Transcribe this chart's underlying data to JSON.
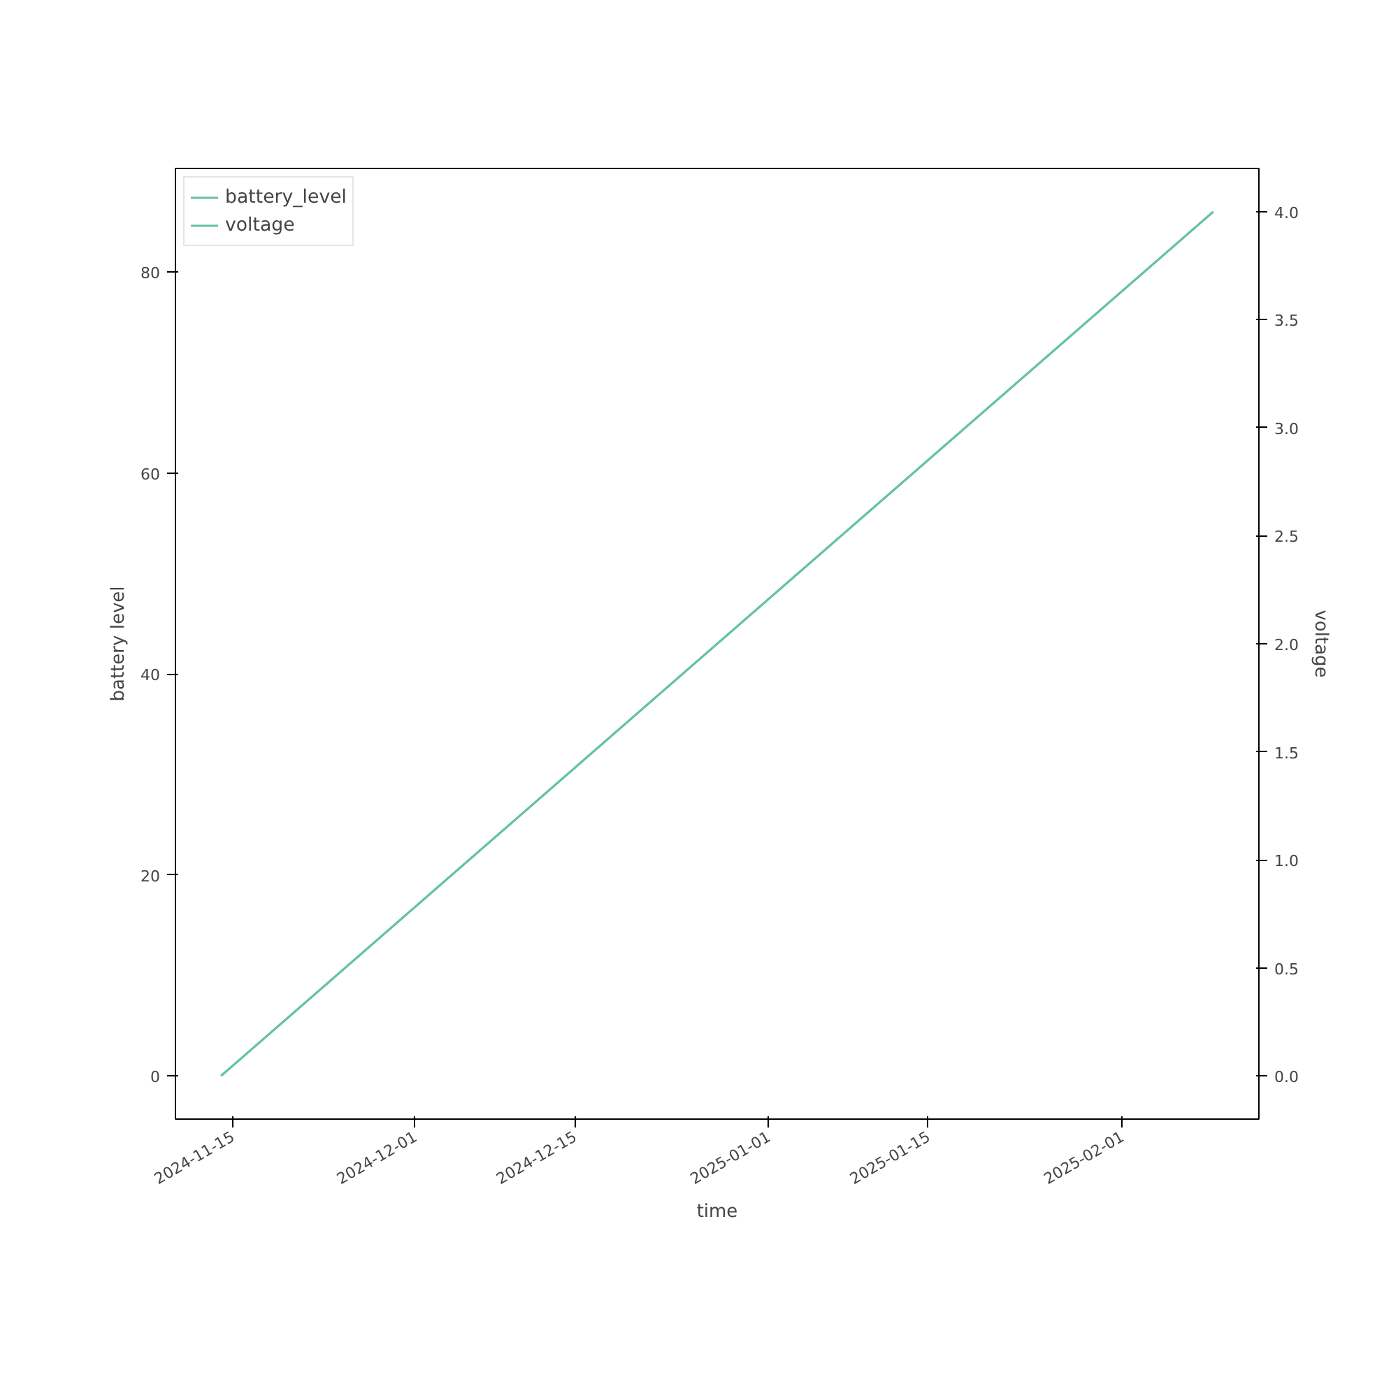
{
  "chart_data": {
    "type": "line",
    "xlabel": "time",
    "ylabel": "battery level",
    "y2label": "voltage",
    "x": [
      "2024-11-14",
      "2025-02-09"
    ],
    "series": [
      {
        "name": "battery_level",
        "color": "#66c2a5",
        "values": [
          0,
          86
        ]
      },
      {
        "name": "voltage",
        "color": "#66c2a5",
        "values": [
          0,
          4.0
        ],
        "axis": "y2"
      }
    ],
    "xlim": [
      "2024-11-10",
      "2025-02-13"
    ],
    "xticks": [
      "2024-11-15",
      "2024-12-01",
      "2024-12-15",
      "2025-01-01",
      "2025-01-15",
      "2025-02-01"
    ],
    "ylim": [
      -4.3,
      90.3
    ],
    "yticks": [
      0,
      20,
      40,
      60,
      80
    ],
    "y2lim": [
      -0.2,
      4.2
    ],
    "y2ticks": [
      {
        "value": 0,
        "label": "0.0"
      },
      {
        "value": 0.5,
        "label": "0.5"
      },
      {
        "value": 1,
        "label": "1.0"
      },
      {
        "value": 1.5,
        "label": "1.5"
      },
      {
        "value": 2,
        "label": "2.0"
      },
      {
        "value": 2.5,
        "label": "2.5"
      },
      {
        "value": 3,
        "label": "3.0"
      },
      {
        "value": 3.5,
        "label": "3.5"
      },
      {
        "value": 4,
        "label": "4.0"
      }
    ],
    "legend": "top left",
    "grid": false,
    "line_style": "solid",
    "marker": "none"
  }
}
